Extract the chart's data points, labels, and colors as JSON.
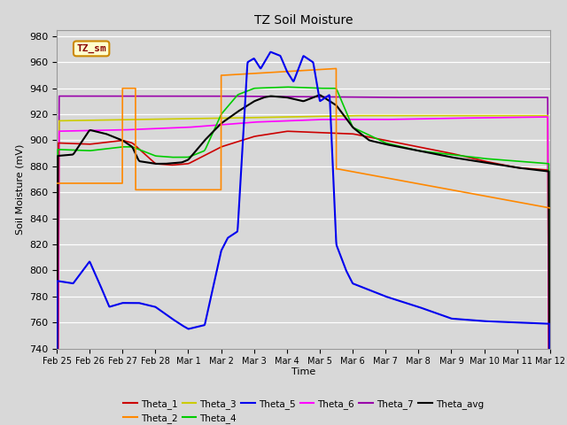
{
  "title": "TZ Soil Moisture",
  "ylabel": "Soil Moisture (mV)",
  "xlabel": "Time",
  "ylim": [
    740,
    985
  ],
  "yticks": [
    740,
    760,
    780,
    800,
    820,
    840,
    860,
    880,
    900,
    920,
    940,
    960,
    980
  ],
  "bg_color": "#d8d8d8",
  "plot_bg_color": "#d8d8d8",
  "legend_label": "TZ_sm",
  "colors": {
    "Theta_1": "#cc0000",
    "Theta_2": "#ff8800",
    "Theta_3": "#cccc00",
    "Theta_4": "#00cc00",
    "Theta_5": "#0000ee",
    "Theta_6": "#ff00ff",
    "Theta_7": "#9900aa",
    "Theta_avg": "#000000"
  }
}
